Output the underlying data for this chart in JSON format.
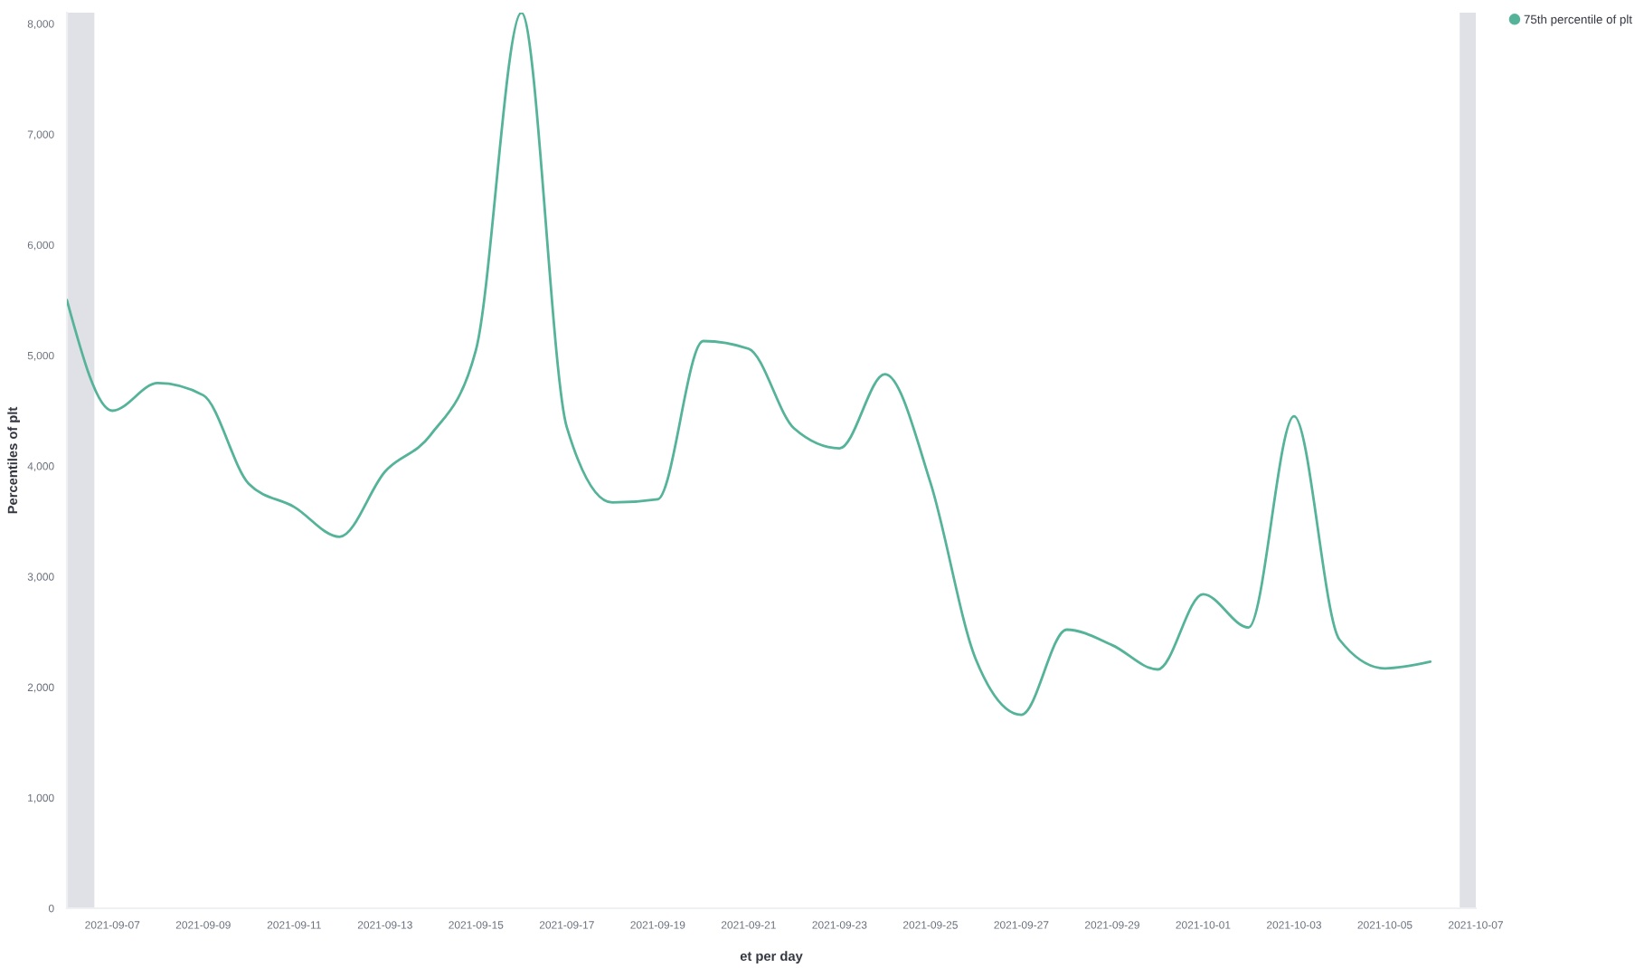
{
  "chart_data": {
    "type": "line",
    "ylabel": "Percentiles of plt",
    "xlabel": "et per day",
    "x": [
      "2021-09-06",
      "2021-09-07",
      "2021-09-08",
      "2021-09-09",
      "2021-09-10",
      "2021-09-11",
      "2021-09-12",
      "2021-09-13",
      "2021-09-14",
      "2021-09-15",
      "2021-09-16",
      "2021-09-17",
      "2021-09-18",
      "2021-09-19",
      "2021-09-20",
      "2021-09-21",
      "2021-09-22",
      "2021-09-23",
      "2021-09-24",
      "2021-09-25",
      "2021-09-26",
      "2021-09-27",
      "2021-09-28",
      "2021-09-29",
      "2021-09-30",
      "2021-10-01",
      "2021-10-02",
      "2021-10-03",
      "2021-10-04",
      "2021-10-05",
      "2021-10-06"
    ],
    "series": [
      {
        "name": "75th percentile of plt",
        "color": "#54b399",
        "values": [
          5500,
          4500,
          4750,
          4640,
          3840,
          3630,
          3360,
          3950,
          4280,
          5050,
          8100,
          4350,
          3670,
          3700,
          5130,
          5060,
          4340,
          4160,
          4830,
          3850,
          2250,
          1750,
          2520,
          2380,
          2160,
          2840,
          2540,
          4450,
          2430,
          2170,
          2230
        ]
      }
    ],
    "xlim": [
      "2021-09-06",
      "2021-10-07"
    ],
    "xticks": [
      "2021-09-07",
      "2021-09-09",
      "2021-09-11",
      "2021-09-13",
      "2021-09-15",
      "2021-09-17",
      "2021-09-19",
      "2021-09-21",
      "2021-09-23",
      "2021-09-25",
      "2021-09-27",
      "2021-09-29",
      "2021-10-01",
      "2021-10-03",
      "2021-10-05",
      "2021-10-07"
    ],
    "ylim": [
      0,
      8100
    ],
    "yticks": [
      0,
      {
        "value": 1000,
        "label": "1,000"
      },
      {
        "value": 2000,
        "label": "2,000"
      },
      {
        "value": 3000,
        "label": "3,000"
      },
      {
        "value": 4000,
        "label": "4,000"
      },
      {
        "value": 5000,
        "label": "5,000"
      },
      {
        "value": 6000,
        "label": "6,000"
      },
      {
        "value": 7000,
        "label": "7,000"
      },
      {
        "value": 8000,
        "label": "8,000"
      }
    ],
    "bands": [
      {
        "axis": "x",
        "from": "2021-09-06",
        "to": "2021-09-06T14:30",
        "color": "#e0e1e6"
      },
      {
        "axis": "x",
        "from": "2021-10-06T15:30",
        "to": "2021-10-07",
        "color": "#e0e1e6"
      }
    ],
    "legend": "top right",
    "marker": "none",
    "line_style": "solid"
  }
}
